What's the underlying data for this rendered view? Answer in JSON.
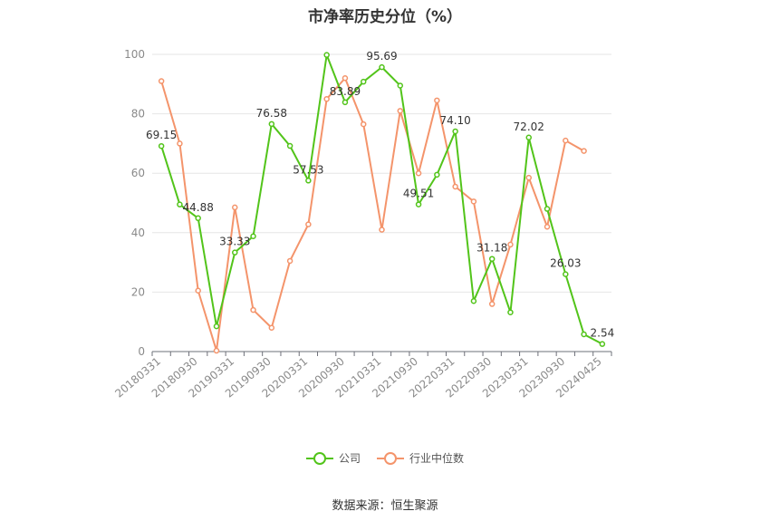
{
  "chart_data": {
    "type": "line",
    "title": "市净率历史分位（%）",
    "ylim": [
      0,
      100
    ],
    "yticks": [
      0,
      20,
      40,
      60,
      80,
      100
    ],
    "x_tick_labels": [
      "20180331",
      "20180930",
      "20190331",
      "20190930",
      "20200331",
      "20200930",
      "20210331",
      "20210930",
      "20220331",
      "20220930",
      "20230331",
      "20230930",
      "20240425"
    ],
    "x": [
      "20180331",
      "20180630",
      "20180930",
      "20181231",
      "20190331",
      "20190630",
      "20190930",
      "20191231",
      "20200331",
      "20200630",
      "20200930",
      "20201231",
      "20210331",
      "20210630",
      "20210930",
      "20211231",
      "20220331",
      "20220630",
      "20220930",
      "20221231",
      "20230331",
      "20230630",
      "20230930",
      "20231231",
      "20240425"
    ],
    "series": [
      {
        "name": "公司",
        "color": "#52c41a",
        "values": [
          69.15,
          49.5,
          44.88,
          8.5,
          33.33,
          38.8,
          76.58,
          69.2,
          57.53,
          99.8,
          83.89,
          90.8,
          95.69,
          89.5,
          49.51,
          59.5,
          74.1,
          17.0,
          31.18,
          13.2,
          72.02,
          48.0,
          26.03,
          5.8,
          2.54
        ],
        "labels": {
          "0": "69.15",
          "2": "44.88",
          "4": "33.33",
          "6": "76.58",
          "8": "57.53",
          "10": "83.89",
          "12": "95.69",
          "14": "49.51",
          "16": "74.10",
          "18": "31.18",
          "20": "72.02",
          "22": "26.03",
          "24": "2.54"
        }
      },
      {
        "name": "行业中位数",
        "color": "#f4946b",
        "values": [
          91.0,
          70.0,
          20.5,
          0.3,
          48.5,
          14.0,
          8.0,
          30.5,
          42.8,
          85.0,
          92.0,
          76.5,
          41.0,
          81.0,
          60.0,
          84.5,
          55.5,
          50.5,
          16.0,
          36.0,
          58.5,
          42.0,
          71.0,
          67.5,
          null
        ]
      }
    ],
    "legend": [
      "公司",
      "行业中位数"
    ],
    "legend_position": "bottom",
    "grid": true,
    "source": "数据来源：恒生聚源"
  }
}
